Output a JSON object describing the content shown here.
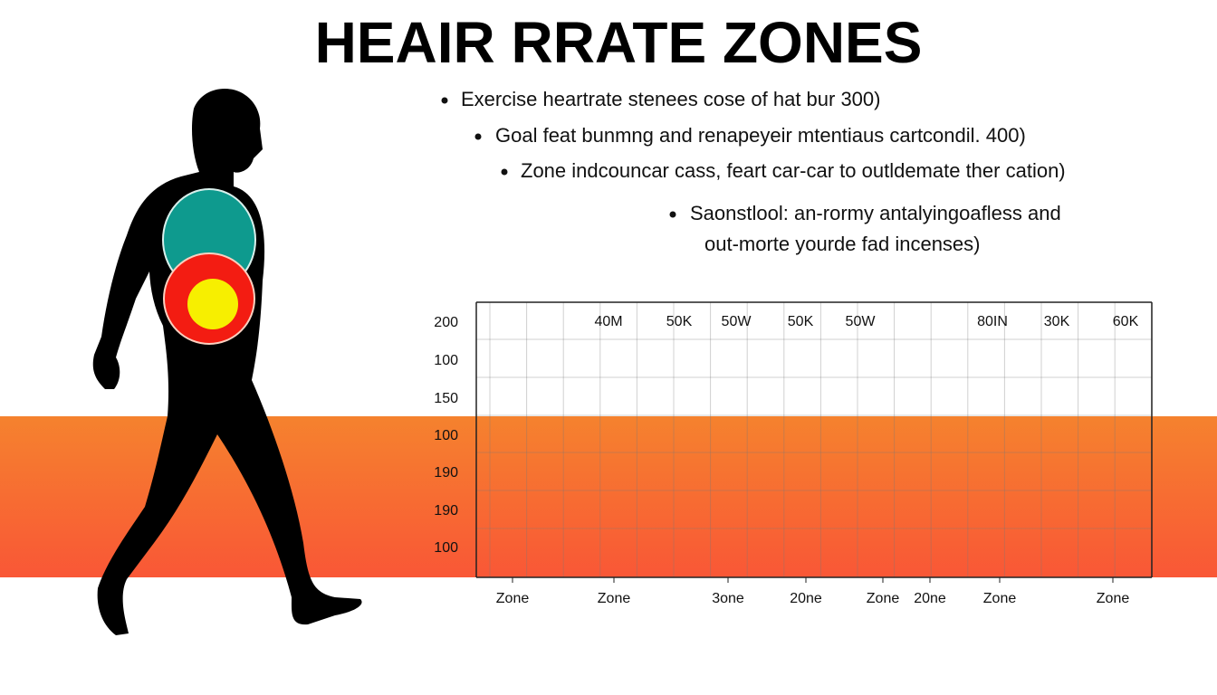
{
  "title": "HEAIR RRATE ZONES",
  "bullets": [
    {
      "text": "Exercise heartrate stenees cose of hat bur 300)"
    },
    {
      "text": "Goal feat bunmng and renapeyeir mtentiaus cartcondil. 400)"
    },
    {
      "text": "Zone indcouncar cass, feart car-car to outldemate ther cation)"
    },
    {
      "text": "Saonstlool: an-rormy antalyingoafless and",
      "continuation": "out-morte yourde fad incenses)"
    }
  ],
  "grid": {
    "left_labels": [
      "200",
      "100",
      "150",
      "100",
      "190",
      "190",
      "100"
    ],
    "top_labels": [
      "40M",
      "50K",
      "50W",
      "50K",
      "50W",
      "80IN",
      "30K",
      "60K"
    ],
    "bottom_labels": [
      "Zone",
      "Zone",
      "3one",
      "20ne",
      "Zone",
      "20ne",
      "Zone",
      "Zone"
    ]
  }
}
